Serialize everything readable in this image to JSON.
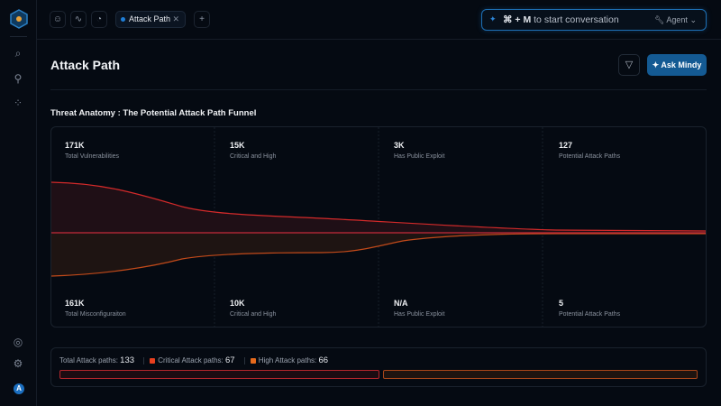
{
  "sidebar": {
    "logo": "logo-hexagon",
    "avatar": "A",
    "icons": [
      "folder-search-icon",
      "rocket-icon",
      "nodes-icon",
      "brain-icon",
      "gear-icon"
    ]
  },
  "topbar": {
    "tab_label": "Attack Path",
    "search": {
      "shortcut": "⌘ + M",
      "placeholder": "to start conversation",
      "agent_label": "Agent"
    }
  },
  "page": {
    "title": "Attack Path",
    "ask_label": "Ask Mindy"
  },
  "funnel": {
    "title": "Threat Anatomy : The Potential Attack Path Funnel",
    "top": [
      {
        "value": "171K",
        "label": "Total Vulnerabilities"
      },
      {
        "value": "15K",
        "label": "Critical and High"
      },
      {
        "value": "3K",
        "label": "Has Public Exploit"
      },
      {
        "value": "127",
        "label": "Potential Attack Paths"
      }
    ],
    "bottom": [
      {
        "value": "161K",
        "label": "Total Misconfiguraiton"
      },
      {
        "value": "10K",
        "label": "Critical and High"
      },
      {
        "value": "N/A",
        "label": "Has Public Exploit"
      },
      {
        "value": "5",
        "label": "Potential Attack Paths"
      }
    ],
    "colors": {
      "vuln": "#d42a2a",
      "misconfig": "#c24a1a"
    }
  },
  "summary": {
    "total_label": "Total Attack paths:",
    "total": "133",
    "critical_label": "Critical Attack paths:",
    "critical": "67",
    "high_label": "High Attack paths:",
    "high": "66",
    "critical_color": "#e8401f",
    "high_color": "#e66a1c"
  }
}
